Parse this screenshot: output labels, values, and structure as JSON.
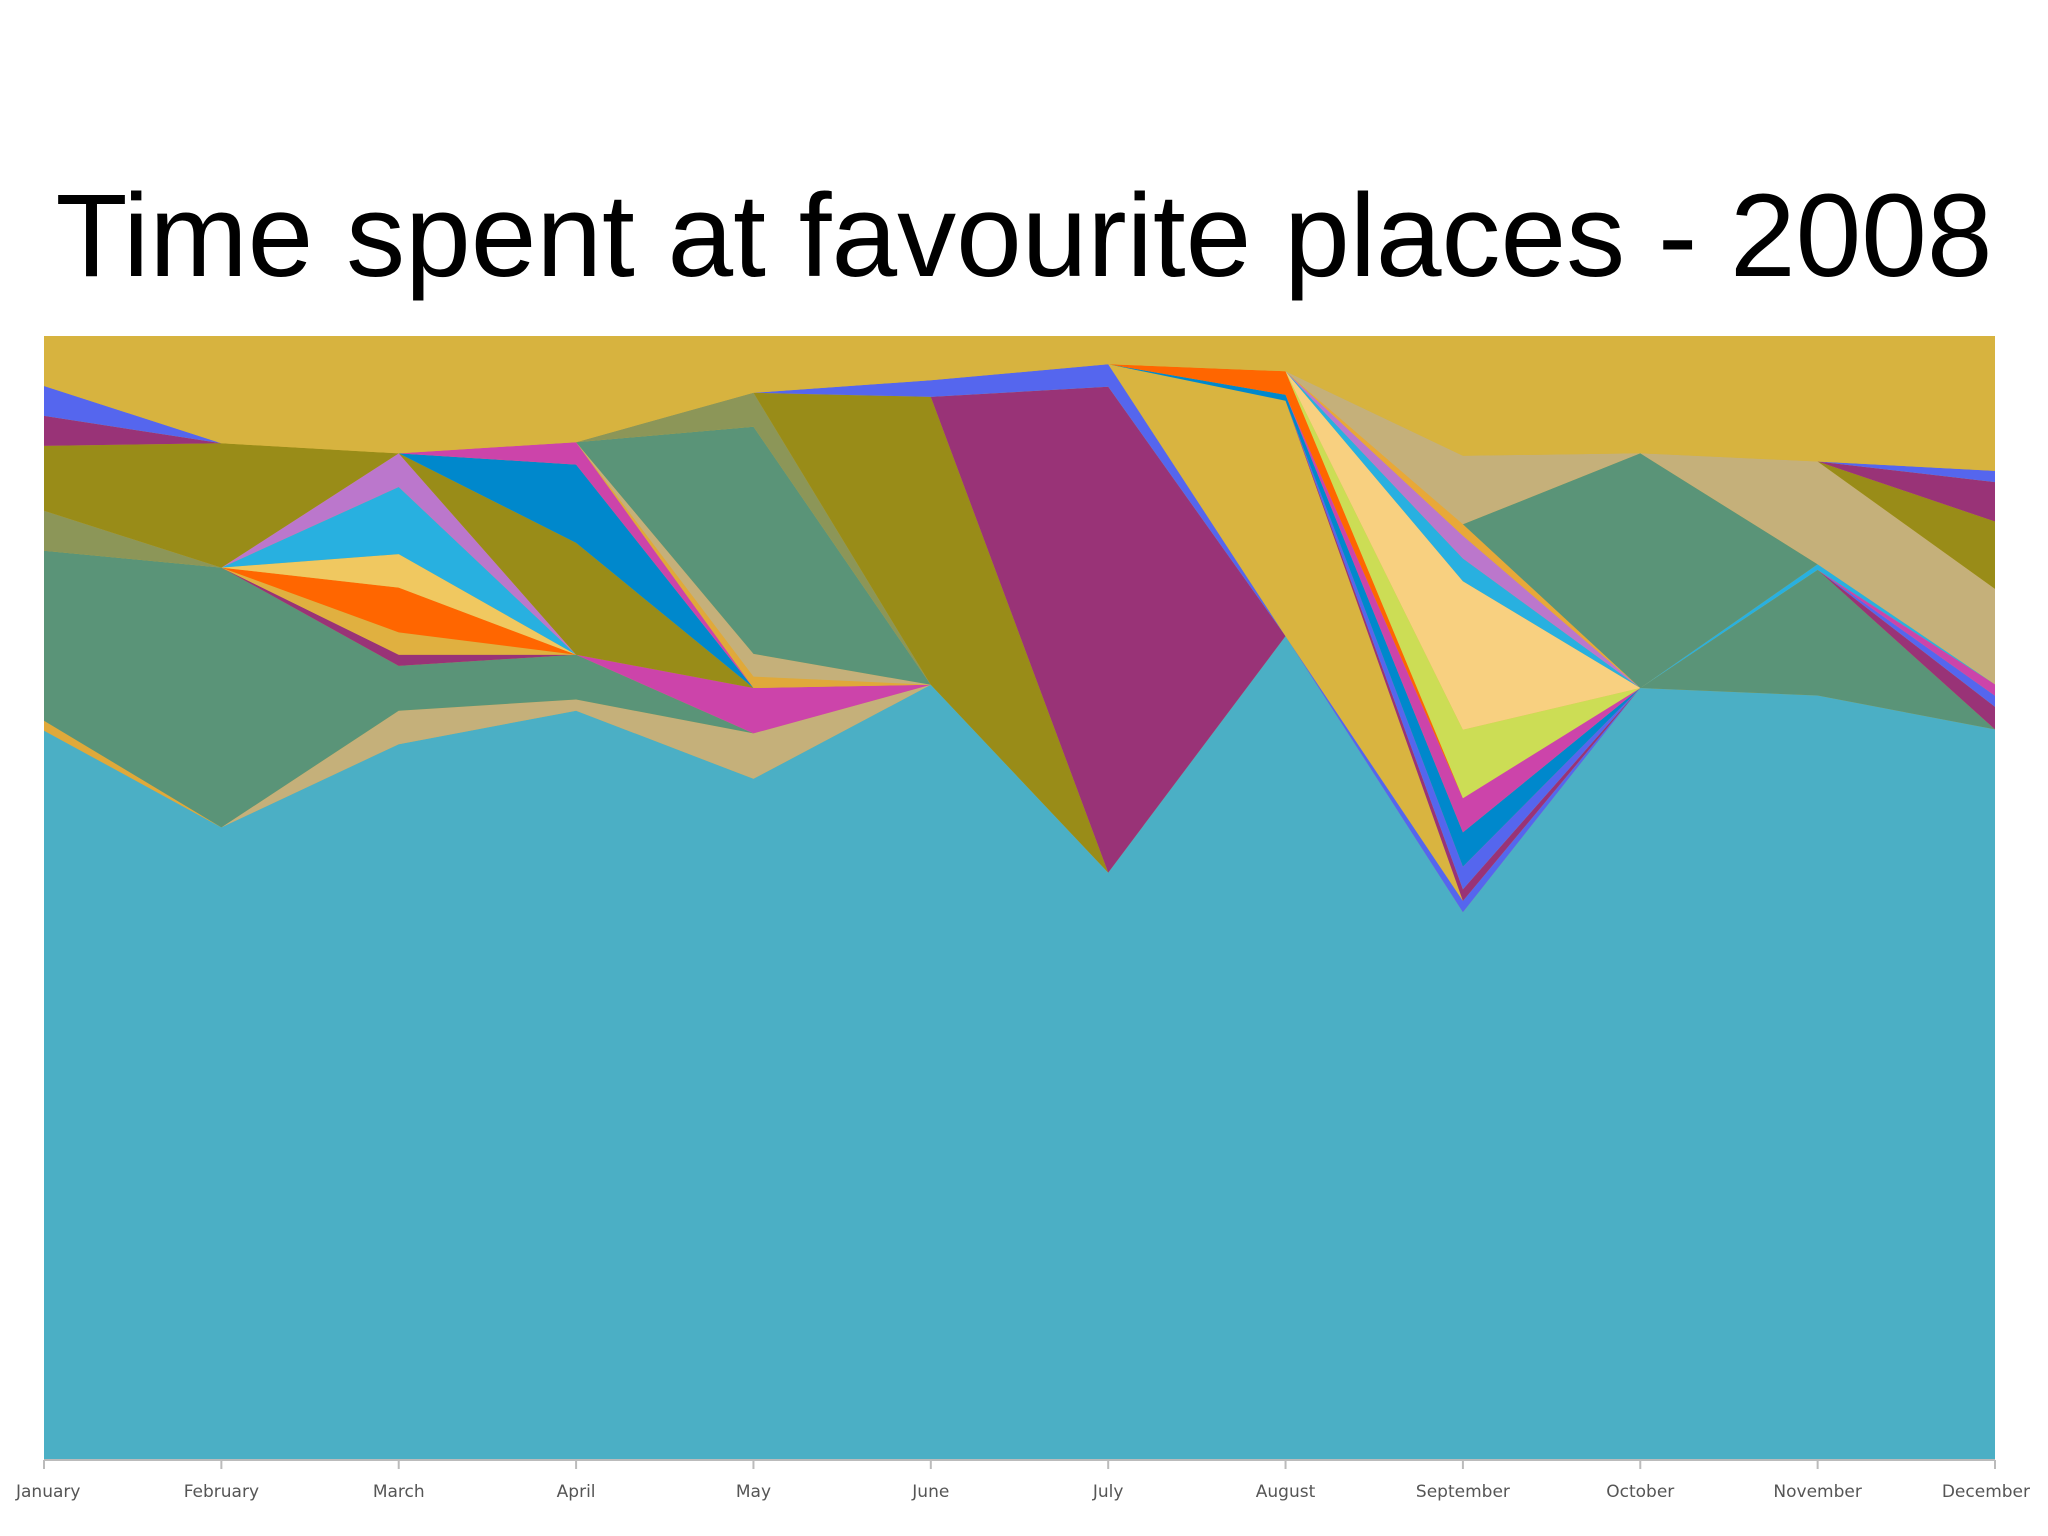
{
  "chart_data": {
    "type": "area",
    "stacked": true,
    "normalized": true,
    "title": "Time spent at favourite places - 2008",
    "xlabel": "",
    "ylabel": "",
    "ylim": [
      0,
      100
    ],
    "grid": false,
    "legend": "none",
    "categories": [
      "January",
      "February",
      "March",
      "April",
      "May",
      "June",
      "July",
      "August",
      "September",
      "October",
      "November",
      "December"
    ],
    "series": [
      {
        "color": "#4bafc5",
        "values": [
          73.0,
          56.0,
          64.0,
          67.0,
          60.0,
          70.0,
          52.0,
          70.0,
          48.0,
          62.5,
          67.0,
          65.0
        ]
      },
      {
        "color": "#e0a93a",
        "values": [
          1.0,
          0.0,
          0.0,
          0.0,
          0.0,
          0.0,
          0.0,
          0.0,
          0.0,
          0.0,
          0.0,
          0.0
        ]
      },
      {
        "color": "#c5b07a",
        "values": [
          0.0,
          0.0,
          3.0,
          1.0,
          4.0,
          0.0,
          0.0,
          0.0,
          0.0,
          0.0,
          0.0,
          0.0
        ]
      },
      {
        "color": "#5a9478",
        "values": [
          17.0,
          23.0,
          4.0,
          4.0,
          0.0,
          0.0,
          0.0,
          0.0,
          0.0,
          0.0,
          11.0,
          0.0
        ]
      },
      {
        "color": "#cc44aa",
        "values": [
          0.0,
          0.0,
          0.0,
          0.0,
          4.0,
          0.0,
          0.0,
          0.0,
          0.0,
          0.0,
          0.0,
          0.0
        ]
      },
      {
        "color": "#e8a838",
        "values": [
          0.0,
          0.0,
          0.0,
          0.0,
          0.0,
          0.0,
          0.0,
          0.0,
          0.0,
          0.0,
          0.0,
          0.0
        ]
      },
      {
        "color": "#cc44aa",
        "values": [
          0.0,
          0.0,
          0.0,
          0.0,
          0.0,
          0.0,
          0.0,
          0.0,
          0.0,
          0.0,
          0.0,
          0.0
        ]
      },
      {
        "color": "#0088cc",
        "values": [
          0.0,
          0.0,
          0.0,
          0.0,
          0.0,
          0.0,
          0.0,
          0.0,
          0.0,
          0.0,
          0.0,
          0.0
        ]
      },
      {
        "color": "#993377",
        "values": [
          0.0,
          0.0,
          1.0,
          0.0,
          0.0,
          0.0,
          0.0,
          0.0,
          0.0,
          0.0,
          0.0,
          0.0
        ]
      },
      {
        "color": "#e0b040",
        "values": [
          0.0,
          0.0,
          2.0,
          0.0,
          0.0,
          0.0,
          0.0,
          0.0,
          0.0,
          0.0,
          0.0,
          0.0
        ]
      },
      {
        "color": "#ff6600",
        "values": [
          0.0,
          0.0,
          4.0,
          0.0,
          0.0,
          0.0,
          0.0,
          0.0,
          0.0,
          0.0,
          0.0,
          0.0
        ]
      },
      {
        "color": "#f0c860",
        "values": [
          0.0,
          0.0,
          3.0,
          0.0,
          0.0,
          0.0,
          0.0,
          0.0,
          0.0,
          0.0,
          0.0,
          0.0
        ]
      },
      {
        "color": "#28b0e0",
        "values": [
          0.0,
          0.0,
          6.0,
          0.0,
          0.0,
          0.0,
          0.0,
          0.0,
          0.0,
          0.0,
          0.0,
          0.0
        ]
      },
      {
        "color": "#bb77cc",
        "values": [
          0.0,
          0.0,
          3.0,
          0.0,
          0.0,
          0.0,
          0.0,
          0.0,
          0.0,
          0.0,
          0.0,
          0.0
        ]
      },
      {
        "color": "#998c18",
        "values": [
          0.0,
          0.0,
          0.0,
          10.0,
          0.0,
          0.0,
          0.0,
          0.0,
          0.0,
          0.0,
          0.0,
          0.0
        ]
      },
      {
        "color": "#0088cc",
        "values": [
          0.0,
          0.0,
          0.0,
          7.0,
          0.0,
          0.0,
          0.0,
          0.0,
          0.0,
          0.0,
          0.0,
          0.0
        ]
      },
      {
        "color": "#cc44aa",
        "values": [
          0.0,
          0.0,
          0.0,
          2.0,
          0.0,
          0.0,
          0.0,
          0.0,
          0.0,
          0.0,
          0.0,
          0.0
        ]
      },
      {
        "color": "#e0a93a",
        "values": [
          0.0,
          0.0,
          0.0,
          0.0,
          1.0,
          0.0,
          0.0,
          0.0,
          0.0,
          0.0,
          0.0,
          0.0
        ]
      },
      {
        "color": "#c5b07a",
        "values": [
          0.0,
          0.0,
          0.0,
          0.0,
          2.0,
          0.0,
          0.0,
          0.0,
          0.0,
          0.0,
          0.0,
          0.0
        ]
      },
      {
        "color": "#5a9478",
        "values": [
          0.0,
          0.0,
          0.0,
          0.0,
          20.0,
          0.0,
          0.0,
          0.0,
          0.0,
          0.0,
          0.0,
          0.0
        ]
      },
      {
        "color": "#8c9658",
        "values": [
          4.0,
          0.0,
          0.0,
          0.0,
          3.0,
          0.0,
          0.0,
          0.0,
          0.0,
          0.0,
          0.0,
          0.0
        ]
      },
      {
        "color": "#998c18",
        "values": [
          6.5,
          11.0,
          0.0,
          0.0,
          0.0,
          26.0,
          0.0,
          0.0,
          0.0,
          0.0,
          0.0,
          0.0
        ]
      },
      {
        "color": "#993377",
        "values": [
          3.0,
          0.0,
          0.0,
          0.0,
          0.0,
          0.0,
          43.0,
          0.0,
          0.0,
          0.0,
          0.0,
          0.0
        ]
      },
      {
        "color": "#5566ee",
        "values": [
          3.0,
          0.0,
          0.0,
          0.0,
          0.0,
          1.5,
          2.0,
          0.0,
          1.0,
          0.0,
          0.0,
          0.0
        ]
      },
      {
        "color": "#d9b440",
        "values": [
          0.0,
          0.0,
          0.0,
          0.0,
          0.0,
          0.0,
          0.0,
          20.0,
          0.0,
          0.0,
          0.0,
          0.0
        ]
      },
      {
        "color": "#993377",
        "values": [
          0.0,
          0.0,
          0.0,
          0.0,
          0.0,
          0.0,
          0.0,
          0.0,
          1.0,
          0.0,
          0.0,
          2.0
        ]
      },
      {
        "color": "#5566ee",
        "values": [
          0.0,
          0.0,
          0.0,
          0.0,
          0.0,
          0.0,
          0.0,
          0.0,
          2.0,
          0.0,
          0.0,
          1.0
        ]
      },
      {
        "color": "#0088cc",
        "values": [
          0.0,
          0.0,
          0.0,
          0.0,
          0.0,
          0.0,
          0.0,
          0.5,
          3.0,
          0.0,
          0.0,
          0.0
        ]
      },
      {
        "color": "#cc44aa",
        "values": [
          0.0,
          0.0,
          0.0,
          0.0,
          0.0,
          0.0,
          0.0,
          0.0,
          3.0,
          0.0,
          0.0,
          1.0
        ]
      },
      {
        "color": "#ff6600",
        "values": [
          0.0,
          0.0,
          0.0,
          0.0,
          0.0,
          0.0,
          0.0,
          2.0,
          0.0,
          0.0,
          0.0,
          0.0
        ]
      },
      {
        "color": "#ccdd55",
        "values": [
          0.0,
          0.0,
          0.0,
          0.0,
          0.0,
          0.0,
          0.0,
          0.0,
          6.0,
          0.0,
          0.0,
          0.0
        ]
      },
      {
        "color": "#f8d080",
        "values": [
          0.0,
          0.0,
          0.0,
          0.0,
          0.0,
          0.0,
          0.0,
          0.0,
          13.0,
          0.0,
          0.0,
          0.0
        ]
      },
      {
        "color": "#28b0e0",
        "values": [
          0.0,
          0.0,
          0.0,
          0.0,
          0.0,
          0.0,
          0.0,
          0.0,
          2.0,
          0.0,
          0.5,
          0.0
        ]
      },
      {
        "color": "#bb77cc",
        "values": [
          0.0,
          0.0,
          0.0,
          0.0,
          0.0,
          0.0,
          0.0,
          0.0,
          2.0,
          0.0,
          0.0,
          0.0
        ]
      },
      {
        "color": "#e8a838",
        "values": [
          0.0,
          0.0,
          0.0,
          0.0,
          0.0,
          0.0,
          0.0,
          0.0,
          1.0,
          0.0,
          0.0,
          0.0
        ]
      },
      {
        "color": "#5a9478",
        "values": [
          0.0,
          0.0,
          0.0,
          0.0,
          0.0,
          0.0,
          0.0,
          0.0,
          0.0,
          19.0,
          0.0,
          0.0
        ]
      },
      {
        "color": "#c5b07a",
        "values": [
          0.0,
          0.0,
          0.0,
          0.0,
          0.0,
          0.0,
          0.0,
          0.0,
          6.0,
          0.0,
          9.0,
          8.5
        ]
      },
      {
        "color": "#998c18",
        "values": [
          0.0,
          0.0,
          0.0,
          0.0,
          0.0,
          0.0,
          0.0,
          0.0,
          0.0,
          0.0,
          0.0,
          6.0
        ]
      },
      {
        "color": "#993377",
        "values": [
          0.0,
          0.0,
          0.0,
          0.0,
          0.0,
          0.0,
          0.0,
          0.0,
          0.0,
          0.0,
          0.0,
          3.5
        ]
      },
      {
        "color": "#5566ee",
        "values": [
          0.0,
          0.0,
          0.0,
          0.0,
          0.0,
          0.0,
          0.0,
          0.0,
          0.0,
          0.0,
          0.0,
          1.0
        ]
      },
      {
        "color": "#d7b33f",
        "values": [
          5.0,
          9.5,
          10.5,
          9.5,
          5.0,
          4.0,
          2.5,
          3.0,
          10.5,
          9.5,
          11.0,
          12.0
        ]
      }
    ]
  }
}
